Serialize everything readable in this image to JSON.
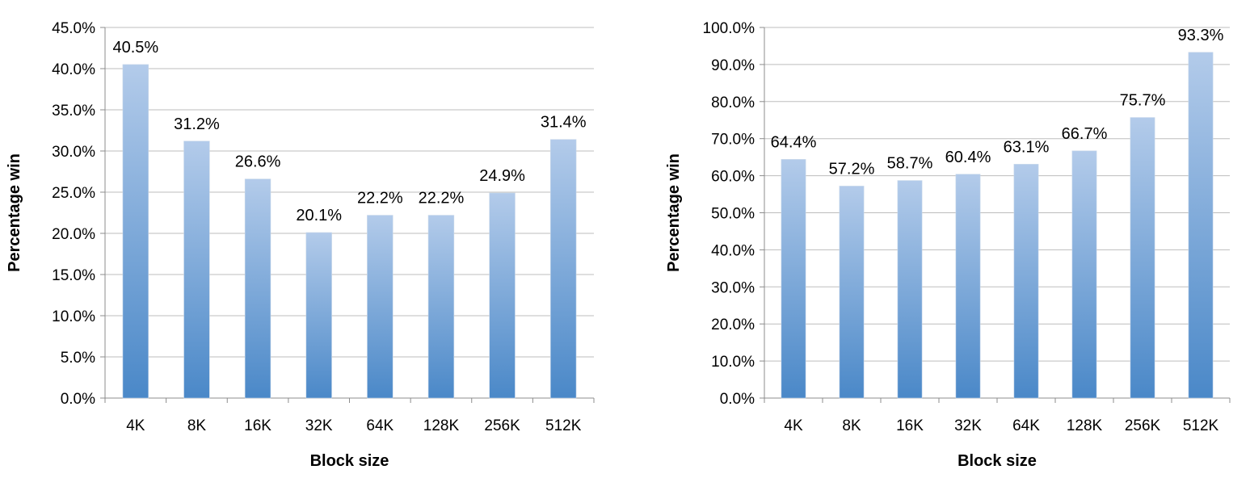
{
  "colors": {
    "bar_top": "#b3cbea",
    "bar_bottom": "#4a88c8",
    "gridline": "#bdbdbd",
    "axis": "#8c8c8c"
  },
  "chart_data": [
    {
      "type": "bar",
      "categories": [
        "4K",
        "8K",
        "16K",
        "32K",
        "64K",
        "128K",
        "256K",
        "512K"
      ],
      "values": [
        40.5,
        31.2,
        26.6,
        20.1,
        22.2,
        22.2,
        24.9,
        31.4
      ],
      "data_labels": [
        "40.5%",
        "31.2%",
        "26.6%",
        "20.1%",
        "22.2%",
        "22.2%",
        "24.9%",
        "31.4%"
      ],
      "xlabel": "Block size",
      "ylabel": "Percentage win",
      "ylim": [
        0,
        45
      ],
      "yticks": [
        0,
        5,
        10,
        15,
        20,
        25,
        30,
        35,
        40,
        45
      ],
      "ytick_labels": [
        "0.0%",
        "5.0%",
        "10.0%",
        "15.0%",
        "20.0%",
        "25.0%",
        "30.0%",
        "35.0%",
        "40.0%",
        "45.0%"
      ],
      "grid": true,
      "legend": "none"
    },
    {
      "type": "bar",
      "categories": [
        "4K",
        "8K",
        "16K",
        "32K",
        "64K",
        "128K",
        "256K",
        "512K"
      ],
      "values": [
        64.4,
        57.2,
        58.7,
        60.4,
        63.1,
        66.7,
        75.7,
        93.3
      ],
      "data_labels": [
        "64.4%",
        "57.2%",
        "58.7%",
        "60.4%",
        "63.1%",
        "66.7%",
        "75.7%",
        "93.3%"
      ],
      "xlabel": "Block size",
      "ylabel": "Percentage win",
      "ylim": [
        0,
        100
      ],
      "yticks": [
        0,
        10,
        20,
        30,
        40,
        50,
        60,
        70,
        80,
        90,
        100
      ],
      "ytick_labels": [
        "0.0%",
        "10.0%",
        "20.0%",
        "30.0%",
        "40.0%",
        "50.0%",
        "60.0%",
        "70.0%",
        "80.0%",
        "90.0%",
        "100.0%"
      ],
      "grid": true,
      "legend": "none"
    }
  ]
}
